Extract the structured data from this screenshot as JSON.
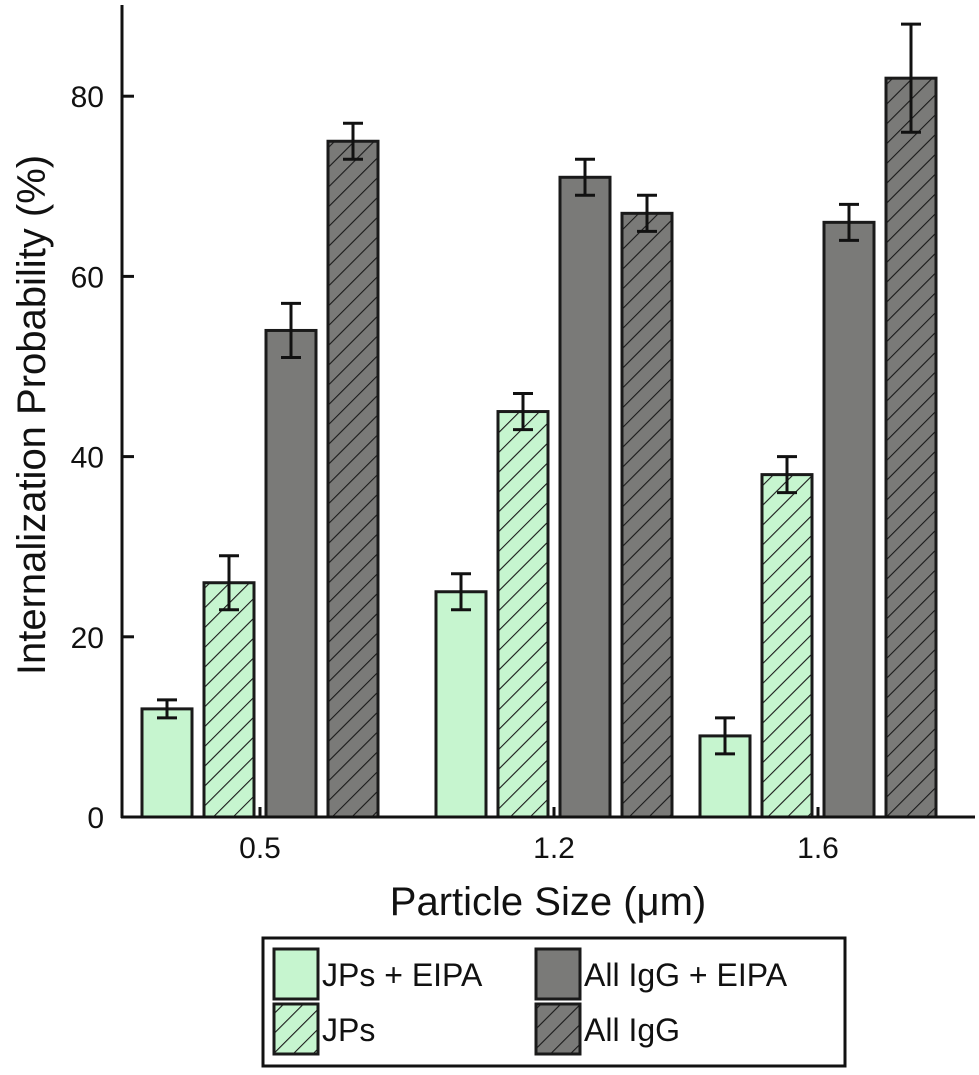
{
  "chart_data": {
    "type": "bar",
    "xlabel": "Particle Size (μm)",
    "ylabel": "Internalization Probability (%)",
    "categories": [
      "0.5",
      "1.2",
      "1.6"
    ],
    "ylim": [
      0,
      90
    ],
    "yticks": [
      0,
      20,
      40,
      60,
      80
    ],
    "grid": false,
    "legend_position": "bottom",
    "series": [
      {
        "name": "JPs + EIPA",
        "values": [
          12,
          25,
          9
        ],
        "errors": [
          1,
          2,
          2
        ],
        "color": "#c6f5cf",
        "hatched": false
      },
      {
        "name": "JPs",
        "values": [
          26,
          45,
          38
        ],
        "errors": [
          3,
          2,
          2
        ],
        "color": "#c6f5cf",
        "hatched": true
      },
      {
        "name": "All IgG + EIPA",
        "values": [
          54,
          71,
          66
        ],
        "errors": [
          3,
          2,
          2
        ],
        "color": "#7a7a78",
        "hatched": false
      },
      {
        "name": "All IgG",
        "values": [
          75,
          67,
          82
        ],
        "errors": [
          2,
          2,
          6
        ],
        "color": "#7a7a78",
        "hatched": true
      }
    ]
  }
}
